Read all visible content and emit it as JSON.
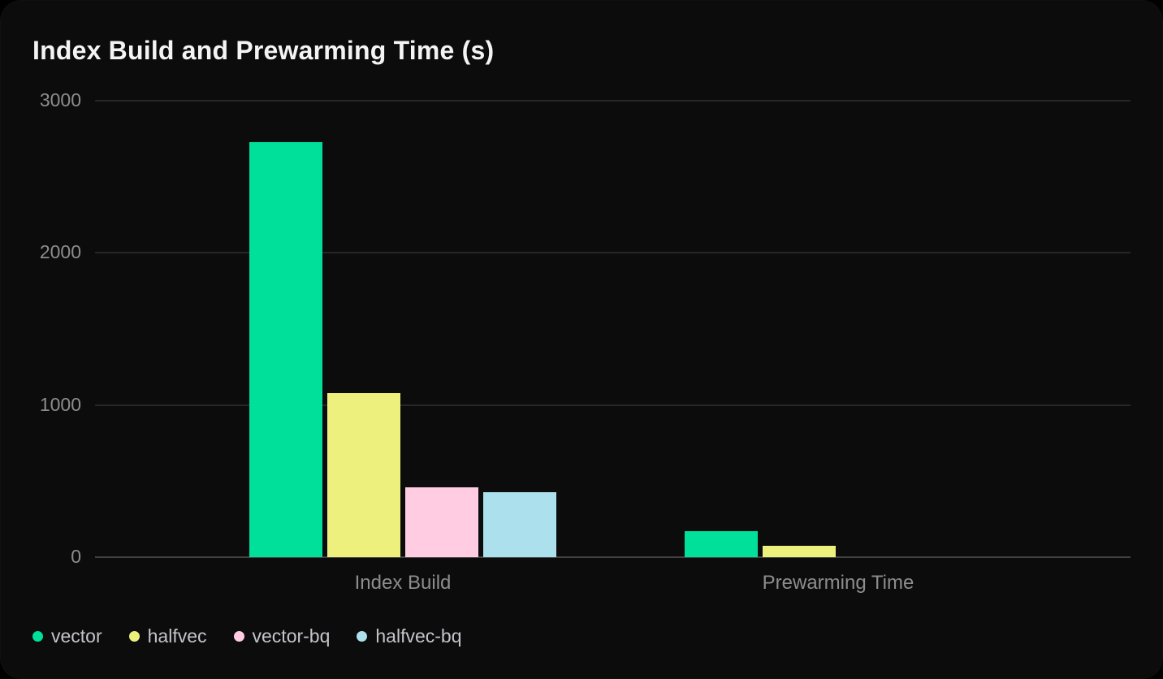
{
  "chart_data": {
    "type": "bar",
    "title": "Index Build and Prewarming Time (s)",
    "categories": [
      "Index Build",
      "Prewarming Time"
    ],
    "series": [
      {
        "name": "vector",
        "color": "#00e09b",
        "values": [
          2730,
          170
        ]
      },
      {
        "name": "halfvec",
        "color": "#edf07d",
        "values": [
          1080,
          75
        ]
      },
      {
        "name": "vector-bq",
        "color": "#ffcce2",
        "values": [
          460,
          0
        ]
      },
      {
        "name": "halfvec-bq",
        "color": "#ace0ec",
        "values": [
          425,
          0
        ]
      }
    ],
    "ylim": [
      0,
      3000
    ],
    "yticks": [
      0,
      1000,
      2000,
      3000
    ],
    "xlabel": "",
    "ylabel": "",
    "grid": "horizontal-only",
    "legend_position": "bottom-left",
    "colors": {
      "card_background": "#0c0c0c",
      "outer_background": "#000000",
      "title_text": "#f4f4f4",
      "axis_text": "#8d8d8d",
      "legend_text": "#c4c4ca",
      "gridline": "#272727",
      "baseline": "#424242"
    }
  }
}
